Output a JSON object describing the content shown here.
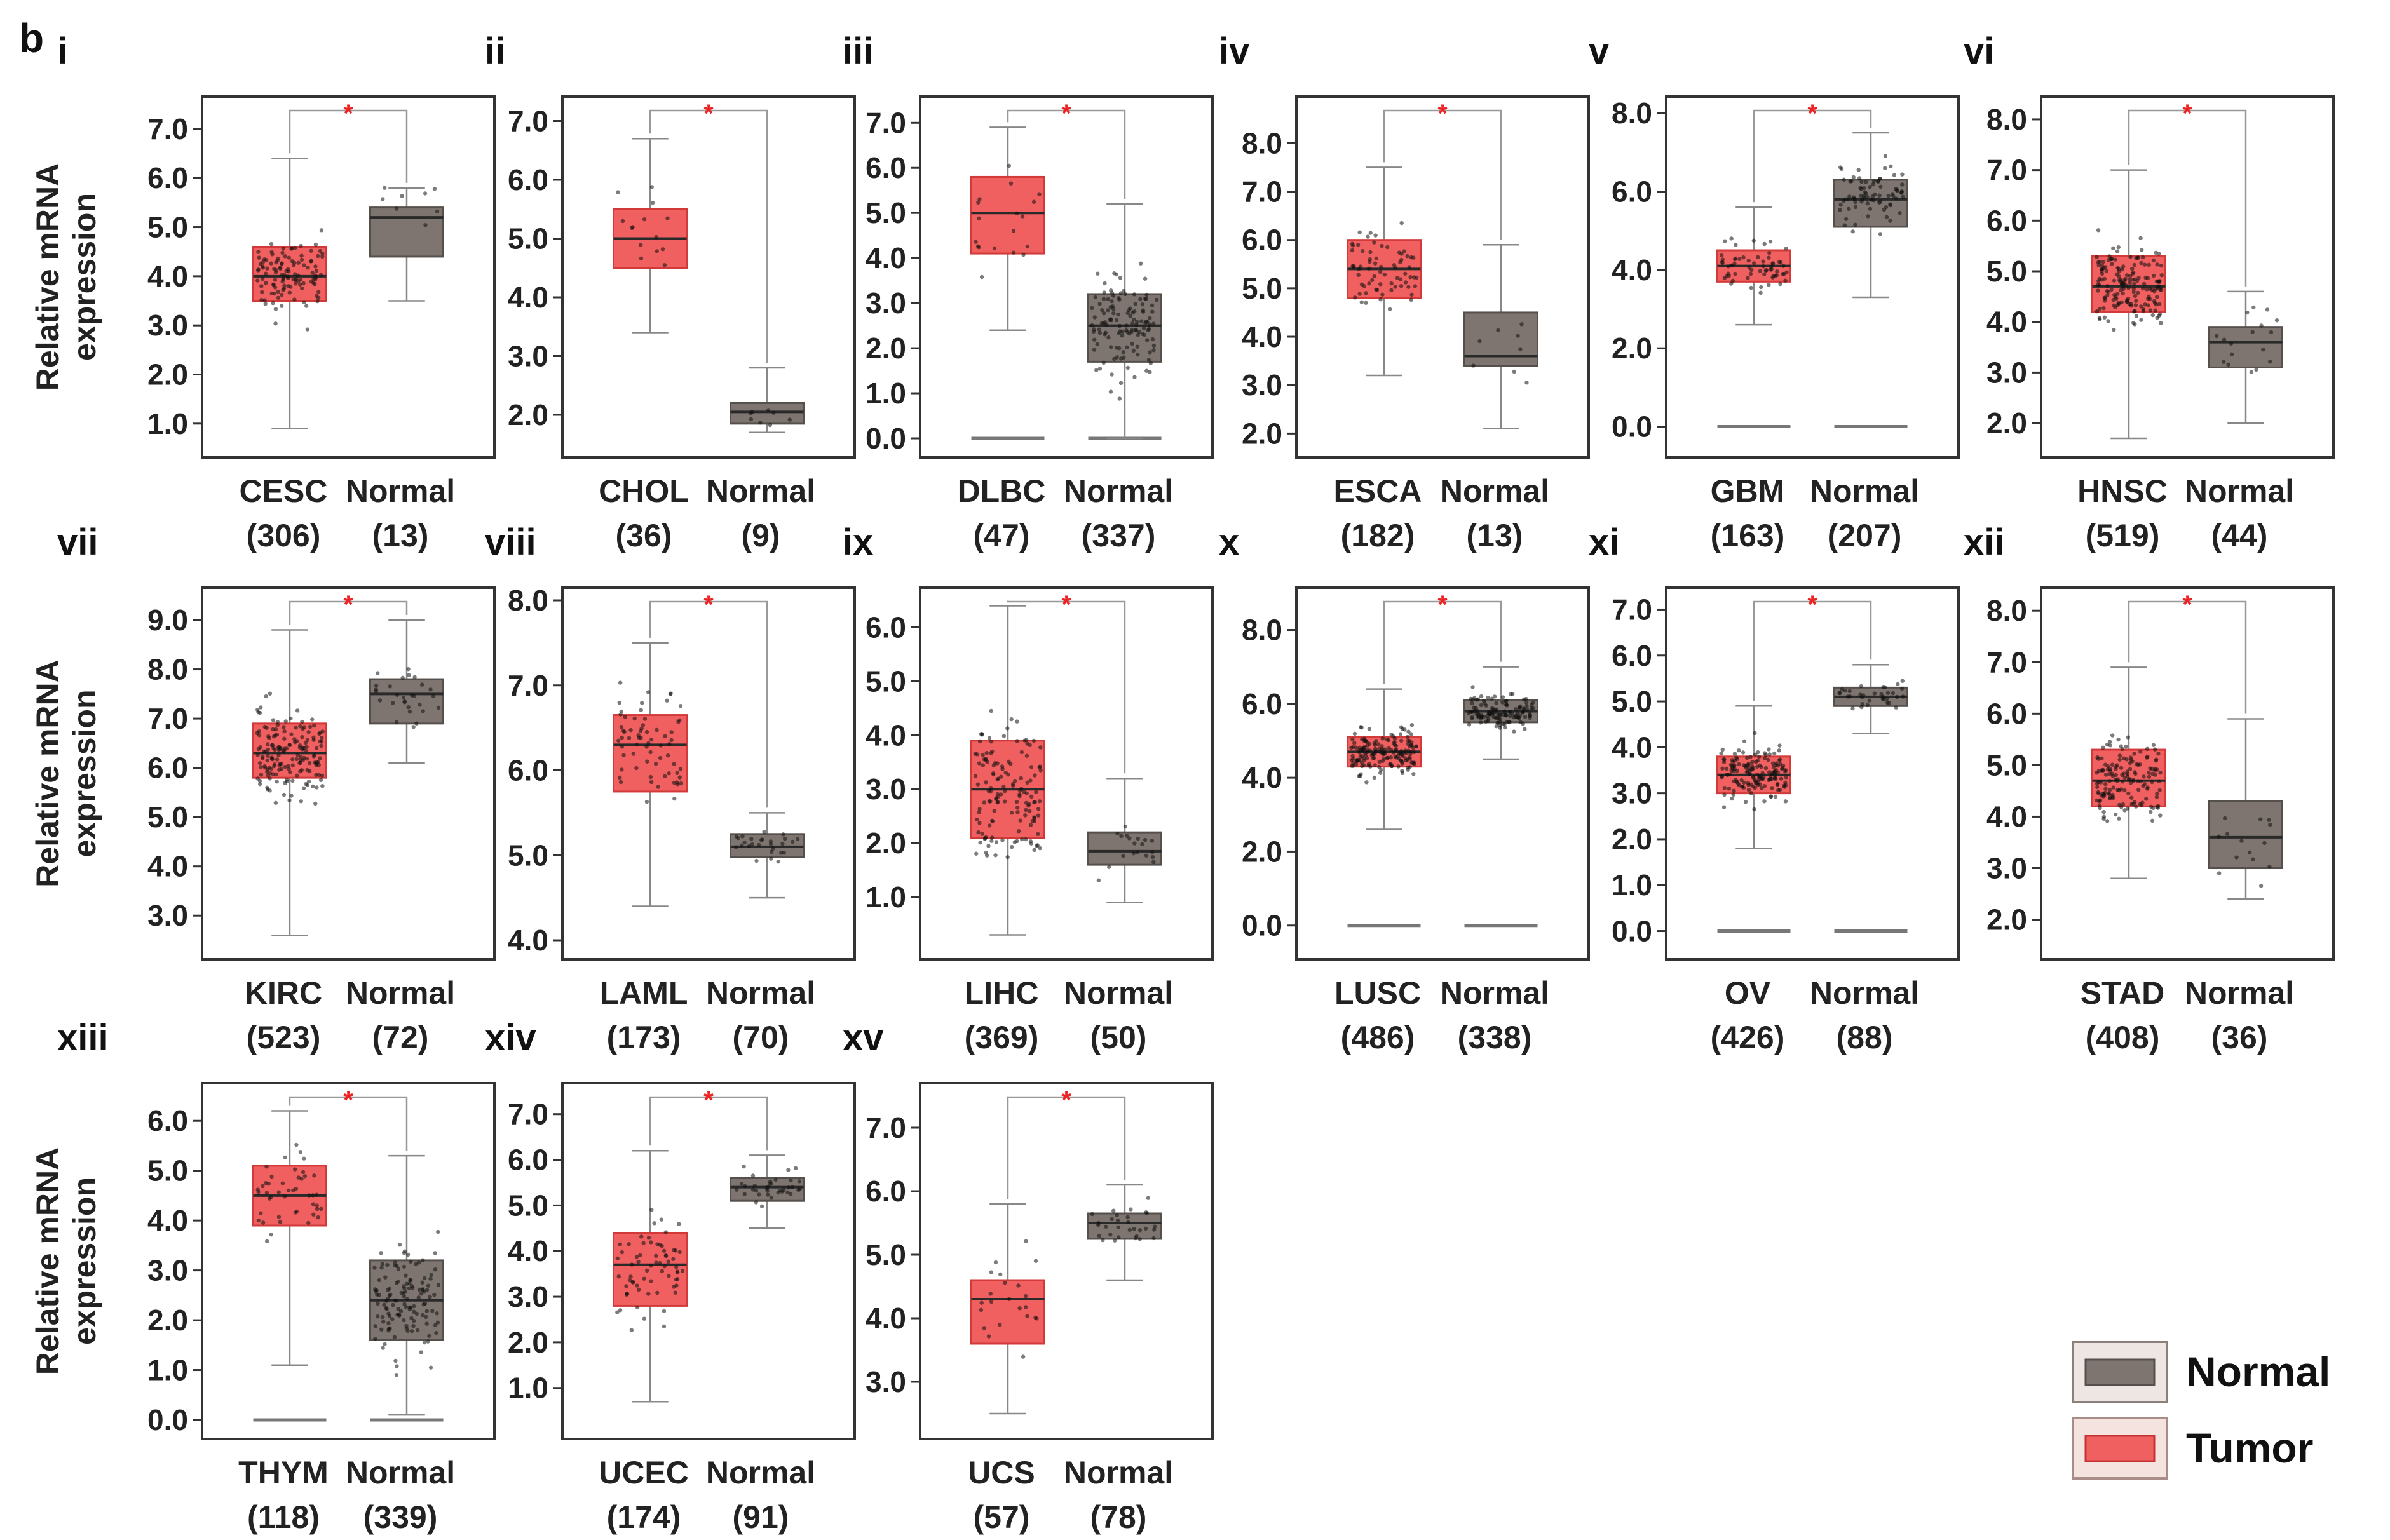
{
  "figure": {
    "panel_letter": "b",
    "ylabel_line1": "Relative mRNA",
    "ylabel_line2": "expression",
    "significance_mark": "*"
  },
  "legend": {
    "items": [
      {
        "label": "Normal",
        "color": "#7f7570"
      },
      {
        "label": "Tumor",
        "color": "#f06060"
      }
    ]
  },
  "colors": {
    "tumor_fill": "#f06060",
    "tumor_edge": "#d23a3a",
    "normal_fill": "#7f7570",
    "normal_edge": "#55504c",
    "frame": "#333333",
    "significance": "#ee2222",
    "points": "#111111"
  },
  "chart_data": [
    {
      "type": "box",
      "numeral": "i",
      "ylim": [
        0.7,
        7.4
      ],
      "yticks": [
        "1.0",
        "2.0",
        "3.0",
        "4.0",
        "5.0",
        "6.0",
        "7.0"
      ],
      "significant": true,
      "groups": [
        {
          "name": "CESC",
          "n": "(306)",
          "kind": "tumor",
          "q1": 3.5,
          "median": 4.0,
          "q3": 4.6,
          "whisker_low": 0.9,
          "whisker_high": 6.4
        },
        {
          "name": "Normal",
          "n": "(13)",
          "kind": "normal",
          "q1": 4.4,
          "median": 5.2,
          "q3": 5.4,
          "whisker_low": 3.5,
          "whisker_high": 5.8
        }
      ]
    },
    {
      "type": "box",
      "numeral": "ii",
      "ylim": [
        1.6,
        7.2
      ],
      "yticks": [
        "2.0",
        "3.0",
        "4.0",
        "5.0",
        "6.0",
        "7.0"
      ],
      "significant": true,
      "groups": [
        {
          "name": "CHOL",
          "n": "(36)",
          "kind": "tumor",
          "q1": 4.5,
          "median": 5.0,
          "q3": 5.5,
          "whisker_low": 3.4,
          "whisker_high": 6.7
        },
        {
          "name": "Normal",
          "n": "(9)",
          "kind": "normal",
          "q1": 1.85,
          "median": 2.05,
          "q3": 2.2,
          "whisker_low": 1.7,
          "whisker_high": 2.8
        }
      ]
    },
    {
      "type": "box",
      "numeral": "iii",
      "ylim": [
        0.0,
        7.3
      ],
      "yticks": [
        "0.0",
        "1.0",
        "2.0",
        "3.0",
        "4.0",
        "5.0",
        "6.0",
        "7.0"
      ],
      "significant": true,
      "groups": [
        {
          "name": "DLBC",
          "n": "(47)",
          "kind": "tumor",
          "q1": 4.1,
          "median": 5.0,
          "q3": 5.8,
          "whisker_low": 2.4,
          "whisker_high": 6.9,
          "zero_line": true
        },
        {
          "name": "Normal",
          "n": "(337)",
          "kind": "normal",
          "q1": 1.7,
          "median": 2.5,
          "q3": 3.2,
          "whisker_low": 0.0,
          "whisker_high": 5.2,
          "zero_line": true
        }
      ]
    },
    {
      "type": "box",
      "numeral": "iv",
      "ylim": [
        1.9,
        8.7
      ],
      "yticks": [
        "2.0",
        "3.0",
        "4.0",
        "5.0",
        "6.0",
        "7.0",
        "8.0"
      ],
      "significant": true,
      "groups": [
        {
          "name": "ESCA",
          "n": "(182)",
          "kind": "tumor",
          "q1": 4.8,
          "median": 5.4,
          "q3": 6.0,
          "whisker_low": 3.2,
          "whisker_high": 7.5
        },
        {
          "name": "Normal",
          "n": "(13)",
          "kind": "normal",
          "q1": 3.4,
          "median": 3.6,
          "q3": 4.5,
          "whisker_low": 2.1,
          "whisker_high": 5.9
        }
      ]
    },
    {
      "type": "box",
      "numeral": "v",
      "ylim": [
        -0.3,
        8.1
      ],
      "yticks": [
        "0.0",
        "2.0",
        "4.0",
        "6.0",
        "8.0"
      ],
      "significant": true,
      "groups": [
        {
          "name": "GBM",
          "n": "(163)",
          "kind": "tumor",
          "q1": 3.7,
          "median": 4.1,
          "q3": 4.5,
          "whisker_low": 2.6,
          "whisker_high": 5.6,
          "zero_line": true
        },
        {
          "name": "Normal",
          "n": "(207)",
          "kind": "normal",
          "q1": 5.1,
          "median": 5.8,
          "q3": 6.3,
          "whisker_low": 3.3,
          "whisker_high": 7.5,
          "zero_line": true
        }
      ]
    },
    {
      "type": "box",
      "numeral": "vi",
      "ylim": [
        1.7,
        8.2
      ],
      "yticks": [
        "2.0",
        "3.0",
        "4.0",
        "5.0",
        "6.0",
        "7.0",
        "8.0"
      ],
      "significant": true,
      "groups": [
        {
          "name": "HNSC",
          "n": "(519)",
          "kind": "tumor",
          "q1": 4.2,
          "median": 4.7,
          "q3": 5.3,
          "whisker_low": 1.7,
          "whisker_high": 7.0
        },
        {
          "name": "Normal",
          "n": "(44)",
          "kind": "normal",
          "q1": 3.1,
          "median": 3.6,
          "q3": 3.9,
          "whisker_low": 2.0,
          "whisker_high": 4.6
        }
      ]
    },
    {
      "type": "box",
      "numeral": "vii",
      "ylim": [
        2.5,
        9.4
      ],
      "yticks": [
        "3.0",
        "4.0",
        "5.0",
        "6.0",
        "7.0",
        "8.0",
        "9.0"
      ],
      "significant": true,
      "groups": [
        {
          "name": "KIRC",
          "n": "(523)",
          "kind": "tumor",
          "q1": 5.8,
          "median": 6.3,
          "q3": 6.9,
          "whisker_low": 2.6,
          "whisker_high": 8.8
        },
        {
          "name": "Normal",
          "n": "(72)",
          "kind": "normal",
          "q1": 6.9,
          "median": 7.5,
          "q3": 7.8,
          "whisker_low": 6.1,
          "whisker_high": 9.0
        }
      ]
    },
    {
      "type": "box",
      "numeral": "viii",
      "ylim": [
        4.0,
        8.0
      ],
      "yticks": [
        "4.0",
        "5.0",
        "6.0",
        "7.0",
        "8.0"
      ],
      "significant": true,
      "groups": [
        {
          "name": "LAML",
          "n": "(173)",
          "kind": "tumor",
          "q1": 5.75,
          "median": 6.3,
          "q3": 6.65,
          "whisker_low": 4.4,
          "whisker_high": 7.5
        },
        {
          "name": "Normal",
          "n": "(70)",
          "kind": "normal",
          "q1": 4.98,
          "median": 5.1,
          "q3": 5.25,
          "whisker_low": 4.5,
          "whisker_high": 5.5
        }
      ]
    },
    {
      "type": "box",
      "numeral": "ix",
      "ylim": [
        0.2,
        6.5
      ],
      "yticks": [
        "1.0",
        "2.0",
        "3.0",
        "4.0",
        "5.0",
        "6.0"
      ],
      "significant": true,
      "groups": [
        {
          "name": "LIHC",
          "n": "(369)",
          "kind": "tumor",
          "q1": 2.1,
          "median": 3.0,
          "q3": 3.9,
          "whisker_low": 0.3,
          "whisker_high": 6.4
        },
        {
          "name": "Normal",
          "n": "(50)",
          "kind": "normal",
          "q1": 1.6,
          "median": 1.85,
          "q3": 2.2,
          "whisker_low": 0.9,
          "whisker_high": 3.2
        }
      ]
    },
    {
      "type": "box",
      "numeral": "x",
      "ylim": [
        -0.4,
        8.8
      ],
      "yticks": [
        "0.0",
        "2.0",
        "4.0",
        "6.0",
        "8.0"
      ],
      "significant": true,
      "groups": [
        {
          "name": "LUSC",
          "n": "(486)",
          "kind": "tumor",
          "q1": 4.3,
          "median": 4.7,
          "q3": 5.1,
          "whisker_low": 2.6,
          "whisker_high": 6.4,
          "zero_line": true
        },
        {
          "name": "Normal",
          "n": "(338)",
          "kind": "normal",
          "q1": 5.5,
          "median": 5.8,
          "q3": 6.1,
          "whisker_low": 4.5,
          "whisker_high": 7.0,
          "zero_line": true
        }
      ]
    },
    {
      "type": "box",
      "numeral": "xi",
      "ylim": [
        -0.2,
        7.2
      ],
      "yticks": [
        "0.0",
        "1.0",
        "2.0",
        "3.0",
        "4.0",
        "5.0",
        "6.0",
        "7.0"
      ],
      "significant": true,
      "groups": [
        {
          "name": "OV",
          "n": "(426)",
          "kind": "tumor",
          "q1": 3.0,
          "median": 3.4,
          "q3": 3.8,
          "whisker_low": 1.8,
          "whisker_high": 4.9,
          "zero_line": true
        },
        {
          "name": "Normal",
          "n": "(88)",
          "kind": "normal",
          "q1": 4.9,
          "median": 5.1,
          "q3": 5.3,
          "whisker_low": 4.3,
          "whisker_high": 5.8,
          "zero_line": true
        }
      ]
    },
    {
      "type": "box",
      "numeral": "xii",
      "ylim": [
        1.6,
        8.2
      ],
      "yticks": [
        "2.0",
        "3.0",
        "4.0",
        "5.0",
        "6.0",
        "7.0",
        "8.0"
      ],
      "significant": true,
      "groups": [
        {
          "name": "STAD",
          "n": "(408)",
          "kind": "tumor",
          "q1": 4.2,
          "median": 4.7,
          "q3": 5.3,
          "whisker_low": 2.8,
          "whisker_high": 6.9
        },
        {
          "name": "Normal",
          "n": "(36)",
          "kind": "normal",
          "q1": 3.0,
          "median": 3.6,
          "q3": 4.3,
          "whisker_low": 2.4,
          "whisker_high": 5.9
        }
      ]
    },
    {
      "type": "box",
      "numeral": "xiii",
      "ylim": [
        0.0,
        6.5
      ],
      "yticks": [
        "0.0",
        "1.0",
        "2.0",
        "3.0",
        "4.0",
        "5.0",
        "6.0"
      ],
      "significant": true,
      "groups": [
        {
          "name": "THYM",
          "n": "(118)",
          "kind": "tumor",
          "q1": 3.9,
          "median": 4.5,
          "q3": 5.1,
          "whisker_low": 1.1,
          "whisker_high": 6.2,
          "zero_line": true
        },
        {
          "name": "Normal",
          "n": "(339)",
          "kind": "normal",
          "q1": 1.6,
          "median": 2.4,
          "q3": 3.2,
          "whisker_low": 0.1,
          "whisker_high": 5.3,
          "zero_line": true
        }
      ]
    },
    {
      "type": "box",
      "numeral": "xiv",
      "ylim": [
        0.3,
        7.4
      ],
      "yticks": [
        "1.0",
        "2.0",
        "3.0",
        "4.0",
        "5.0",
        "6.0",
        "7.0"
      ],
      "significant": true,
      "groups": [
        {
          "name": "UCEC",
          "n": "(174)",
          "kind": "tumor",
          "q1": 2.8,
          "median": 3.7,
          "q3": 4.4,
          "whisker_low": 0.7,
          "whisker_high": 6.2
        },
        {
          "name": "Normal",
          "n": "(91)",
          "kind": "normal",
          "q1": 5.1,
          "median": 5.4,
          "q3": 5.6,
          "whisker_low": 4.5,
          "whisker_high": 6.1
        }
      ]
    },
    {
      "type": "box",
      "numeral": "xv",
      "ylim": [
        2.4,
        7.5
      ],
      "yticks": [
        "3.0",
        "4.0",
        "5.0",
        "6.0",
        "7.0"
      ],
      "significant": true,
      "groups": [
        {
          "name": "UCS",
          "n": "(57)",
          "kind": "tumor",
          "q1": 3.6,
          "median": 4.3,
          "q3": 4.6,
          "whisker_low": 2.5,
          "whisker_high": 5.8
        },
        {
          "name": "Normal",
          "n": "(78)",
          "kind": "normal",
          "q1": 5.25,
          "median": 5.5,
          "q3": 5.65,
          "whisker_low": 4.6,
          "whisker_high": 6.1
        }
      ]
    }
  ]
}
